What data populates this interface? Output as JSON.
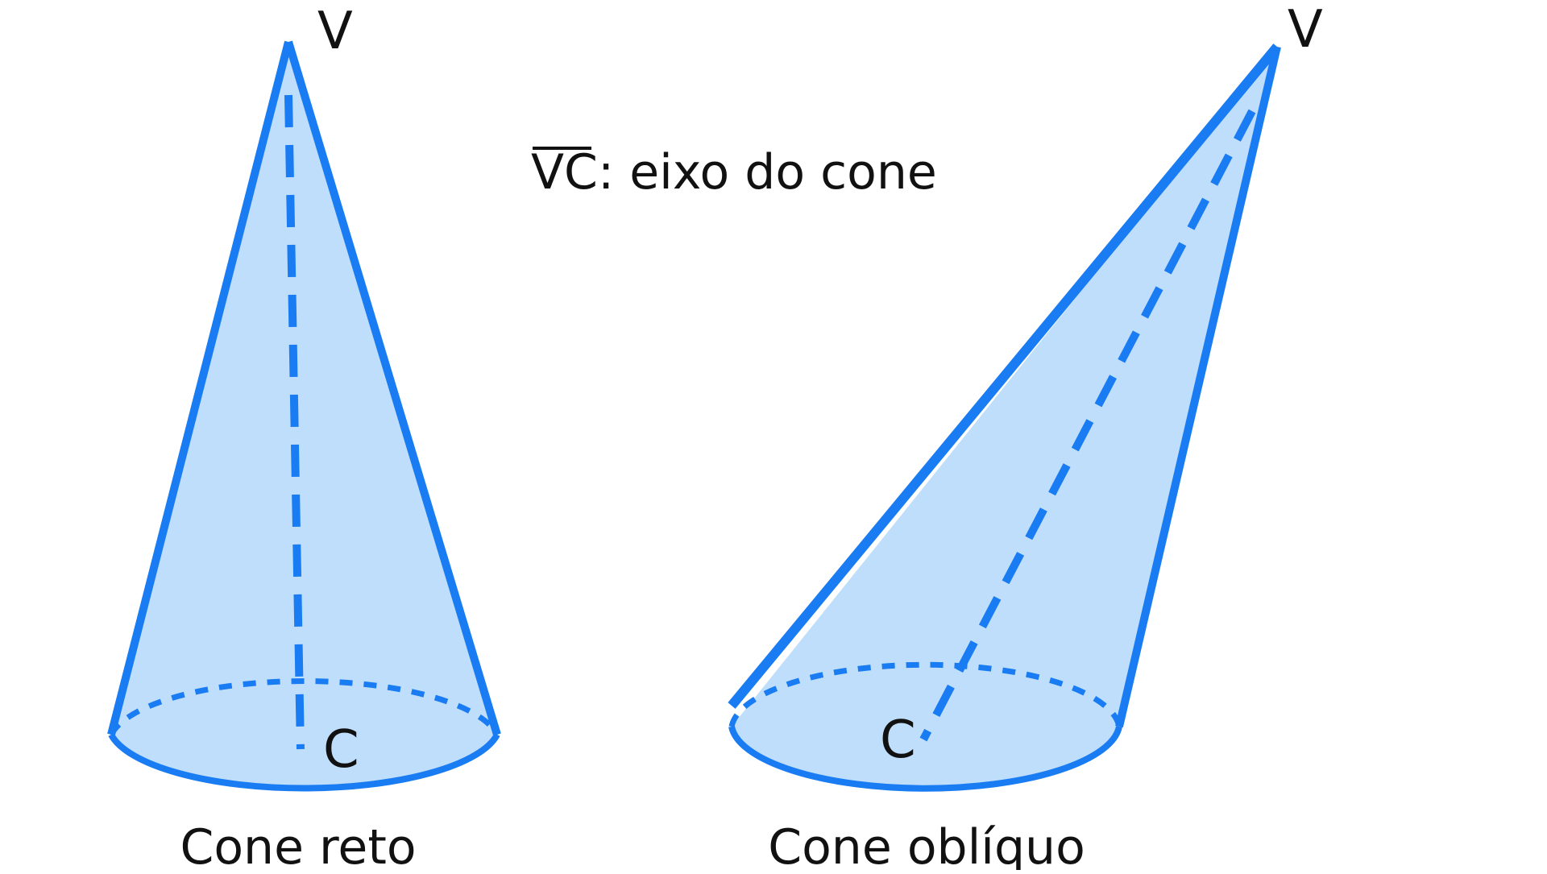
{
  "colors": {
    "stroke": "#1a7cf2",
    "fill": "#bfdefb",
    "text": "#111111"
  },
  "legend": {
    "segment": "VC",
    "text": ": eixo do cone"
  },
  "right_cone": {
    "vertex_label": "V",
    "center_label": "C",
    "caption": "Cone reto"
  },
  "oblique_cone": {
    "vertex_label": "V",
    "center_label": "C",
    "caption": "Cone oblíquo"
  }
}
